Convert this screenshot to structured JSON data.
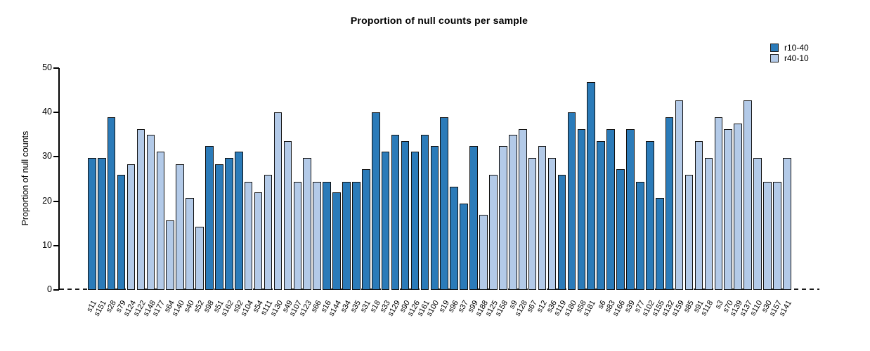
{
  "chart_data": {
    "type": "bar",
    "title": "Proportion of null counts per sample",
    "ylabel": "Proportion of null counts",
    "xlabel": "",
    "ylim": [
      0,
      50
    ],
    "yticks": [
      0,
      10,
      20,
      30,
      40,
      50
    ],
    "grid": false,
    "legend_position": "top-right",
    "zero_line_style": "dashed",
    "bar_border_color": "#111111",
    "legend": [
      {
        "name": "r10-40",
        "color": "#2b7bb9"
      },
      {
        "name": "r40-10",
        "color": "#b3cae8"
      }
    ],
    "categories": [
      "s11",
      "s151",
      "s28",
      "s79",
      "s124",
      "s122",
      "s148",
      "s177",
      "s64",
      "s140",
      "s40",
      "s52",
      "s98",
      "s51",
      "s162",
      "s92",
      "s104",
      "s54",
      "s111",
      "s130",
      "s49",
      "s107",
      "s123",
      "s66",
      "s16",
      "s144",
      "s34",
      "s35",
      "s31",
      "s18",
      "s33",
      "s129",
      "s90",
      "s126",
      "s161",
      "s100",
      "s19",
      "s96",
      "s37",
      "s99",
      "s188",
      "s125",
      "s158",
      "s9",
      "s128",
      "s67",
      "s12",
      "s36",
      "s119",
      "s180",
      "s58",
      "s181",
      "s6",
      "s83",
      "s166",
      "s39",
      "s77",
      "s102",
      "s155",
      "s132",
      "s159",
      "s85",
      "s91",
      "s118",
      "s3",
      "s70",
      "s139",
      "s137",
      "s110",
      "s30",
      "s157",
      "s141"
    ],
    "values": [
      29.8,
      29.8,
      38.9,
      25.9,
      28.4,
      36.3,
      34.9,
      31.1,
      15.6,
      28.4,
      20.7,
      14.3,
      32.4,
      28.4,
      29.8,
      31.1,
      24.4,
      22.0,
      25.9,
      40.1,
      33.6,
      24.4,
      29.8,
      24.4,
      24.4,
      22.0,
      24.4,
      24.4,
      27.2,
      40.1,
      31.1,
      34.9,
      33.6,
      31.1,
      34.9,
      32.4,
      38.9,
      23.3,
      19.5,
      32.4,
      16.9,
      25.9,
      32.4,
      34.9,
      36.3,
      29.8,
      32.4,
      29.8,
      25.9,
      40.1,
      36.3,
      46.8,
      33.6,
      36.3,
      27.2,
      36.3,
      24.4,
      33.6,
      20.7,
      38.9,
      42.7,
      25.9,
      33.6,
      29.8,
      38.9,
      36.3,
      37.5,
      42.7,
      29.8,
      24.4,
      24.4,
      29.8
    ],
    "groups": [
      "r10-40",
      "r10-40",
      "r10-40",
      "r10-40",
      "r40-10",
      "r40-10",
      "r40-10",
      "r40-10",
      "r40-10",
      "r40-10",
      "r40-10",
      "r40-10",
      "r10-40",
      "r10-40",
      "r10-40",
      "r10-40",
      "r40-10",
      "r40-10",
      "r40-10",
      "r40-10",
      "r40-10",
      "r40-10",
      "r40-10",
      "r40-10",
      "r10-40",
      "r10-40",
      "r10-40",
      "r10-40",
      "r10-40",
      "r10-40",
      "r10-40",
      "r10-40",
      "r10-40",
      "r10-40",
      "r10-40",
      "r10-40",
      "r10-40",
      "r10-40",
      "r10-40",
      "r10-40",
      "r40-10",
      "r40-10",
      "r40-10",
      "r40-10",
      "r40-10",
      "r40-10",
      "r40-10",
      "r40-10",
      "r10-40",
      "r10-40",
      "r10-40",
      "r10-40",
      "r10-40",
      "r10-40",
      "r10-40",
      "r10-40",
      "r10-40",
      "r10-40",
      "r10-40",
      "r10-40",
      "r40-10",
      "r40-10",
      "r40-10",
      "r40-10",
      "r40-10",
      "r40-10",
      "r40-10",
      "r40-10",
      "r40-10",
      "r40-10",
      "r40-10",
      "r40-10"
    ]
  }
}
